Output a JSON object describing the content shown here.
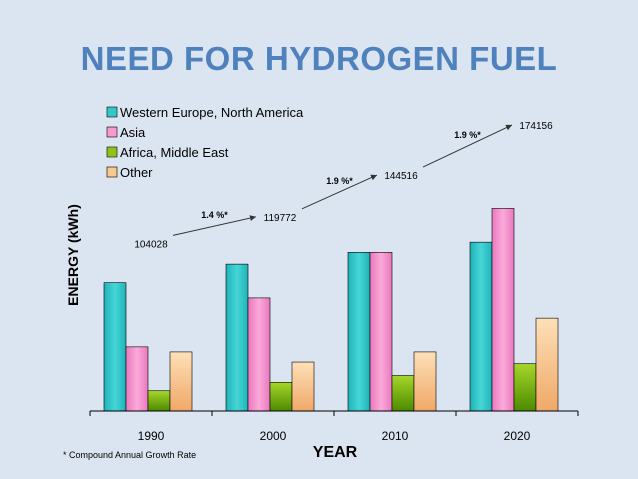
{
  "title": "NEED FOR HYDROGEN FUEL",
  "footnote": "* Compound Annual Growth Rate",
  "colors": {
    "background": "#dbe5f1",
    "title": "#4f81bd",
    "series": [
      "#33c7c7",
      "#f49ad0",
      "#8fc21a",
      "#f9c98f"
    ]
  },
  "chart_data": {
    "type": "bar",
    "title": "",
    "xlabel": "YEAR",
    "ylabel": "ENERGY (kWh)",
    "categories": [
      "1990",
      "2000",
      "2010",
      "2020"
    ],
    "ylim": [
      0,
      186000
    ],
    "grid": false,
    "legend_position": "top-left",
    "series": [
      {
        "name": "Western Europe, North America",
        "values": [
          76000,
          87000,
          94000,
          100000
        ]
      },
      {
        "name": "Asia",
        "values": [
          38000,
          67000,
          94000,
          120000
        ]
      },
      {
        "name": "Africa, Middle East",
        "values": [
          12000,
          17000,
          21000,
          28000
        ]
      },
      {
        "name": "Other",
        "values": [
          35000,
          29000,
          35000,
          55000
        ]
      }
    ],
    "totals": [
      104028,
      119772,
      144516,
      174156
    ],
    "total_labels": [
      "104028",
      "119772",
      "144516",
      "174156"
    ],
    "growth_labels": [
      "1.4 %*",
      "1.9 %*",
      "1.9 %*"
    ]
  }
}
